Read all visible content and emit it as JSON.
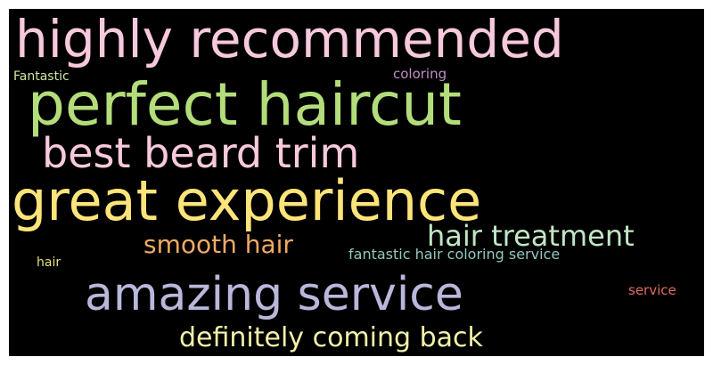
{
  "colors": {
    "background": "#000000",
    "pink": "#f7c9dd",
    "green": "#b3dd7a",
    "yellow": "#fde47a",
    "lavender": "#b9b7da",
    "mint": "#c1e6c4",
    "orange": "#f1aa64",
    "teal": "#93c8bd",
    "cream": "#f3f1a8",
    "light_yellow": "#e6e07d",
    "pale_green": "#d0e7a0",
    "mauve": "#c28ec3",
    "red": "#e06c5c"
  },
  "words": [
    {
      "text": "highly recommended",
      "color": "#f7c9dd"
    },
    {
      "text": "perfect haircut",
      "color": "#b3dd7a"
    },
    {
      "text": "best beard trim",
      "color": "#f7c9dd"
    },
    {
      "text": "great experience",
      "color": "#fde47a"
    },
    {
      "text": "hair treatment",
      "color": "#c1e6c4"
    },
    {
      "text": "smooth hair",
      "color": "#f1aa64"
    },
    {
      "text": "fantastic hair coloring service",
      "color": "#93c8bd"
    },
    {
      "text": "amazing service",
      "color": "#b9b7da"
    },
    {
      "text": "definitely coming back",
      "color": "#f3f1a8"
    },
    {
      "text": "Fantastic",
      "color": "#d0e7a0"
    },
    {
      "text": "coloring",
      "color": "#c28ec3"
    },
    {
      "text": "hair",
      "color": "#e6e07d"
    },
    {
      "text": "service",
      "color": "#e06c5c"
    }
  ]
}
